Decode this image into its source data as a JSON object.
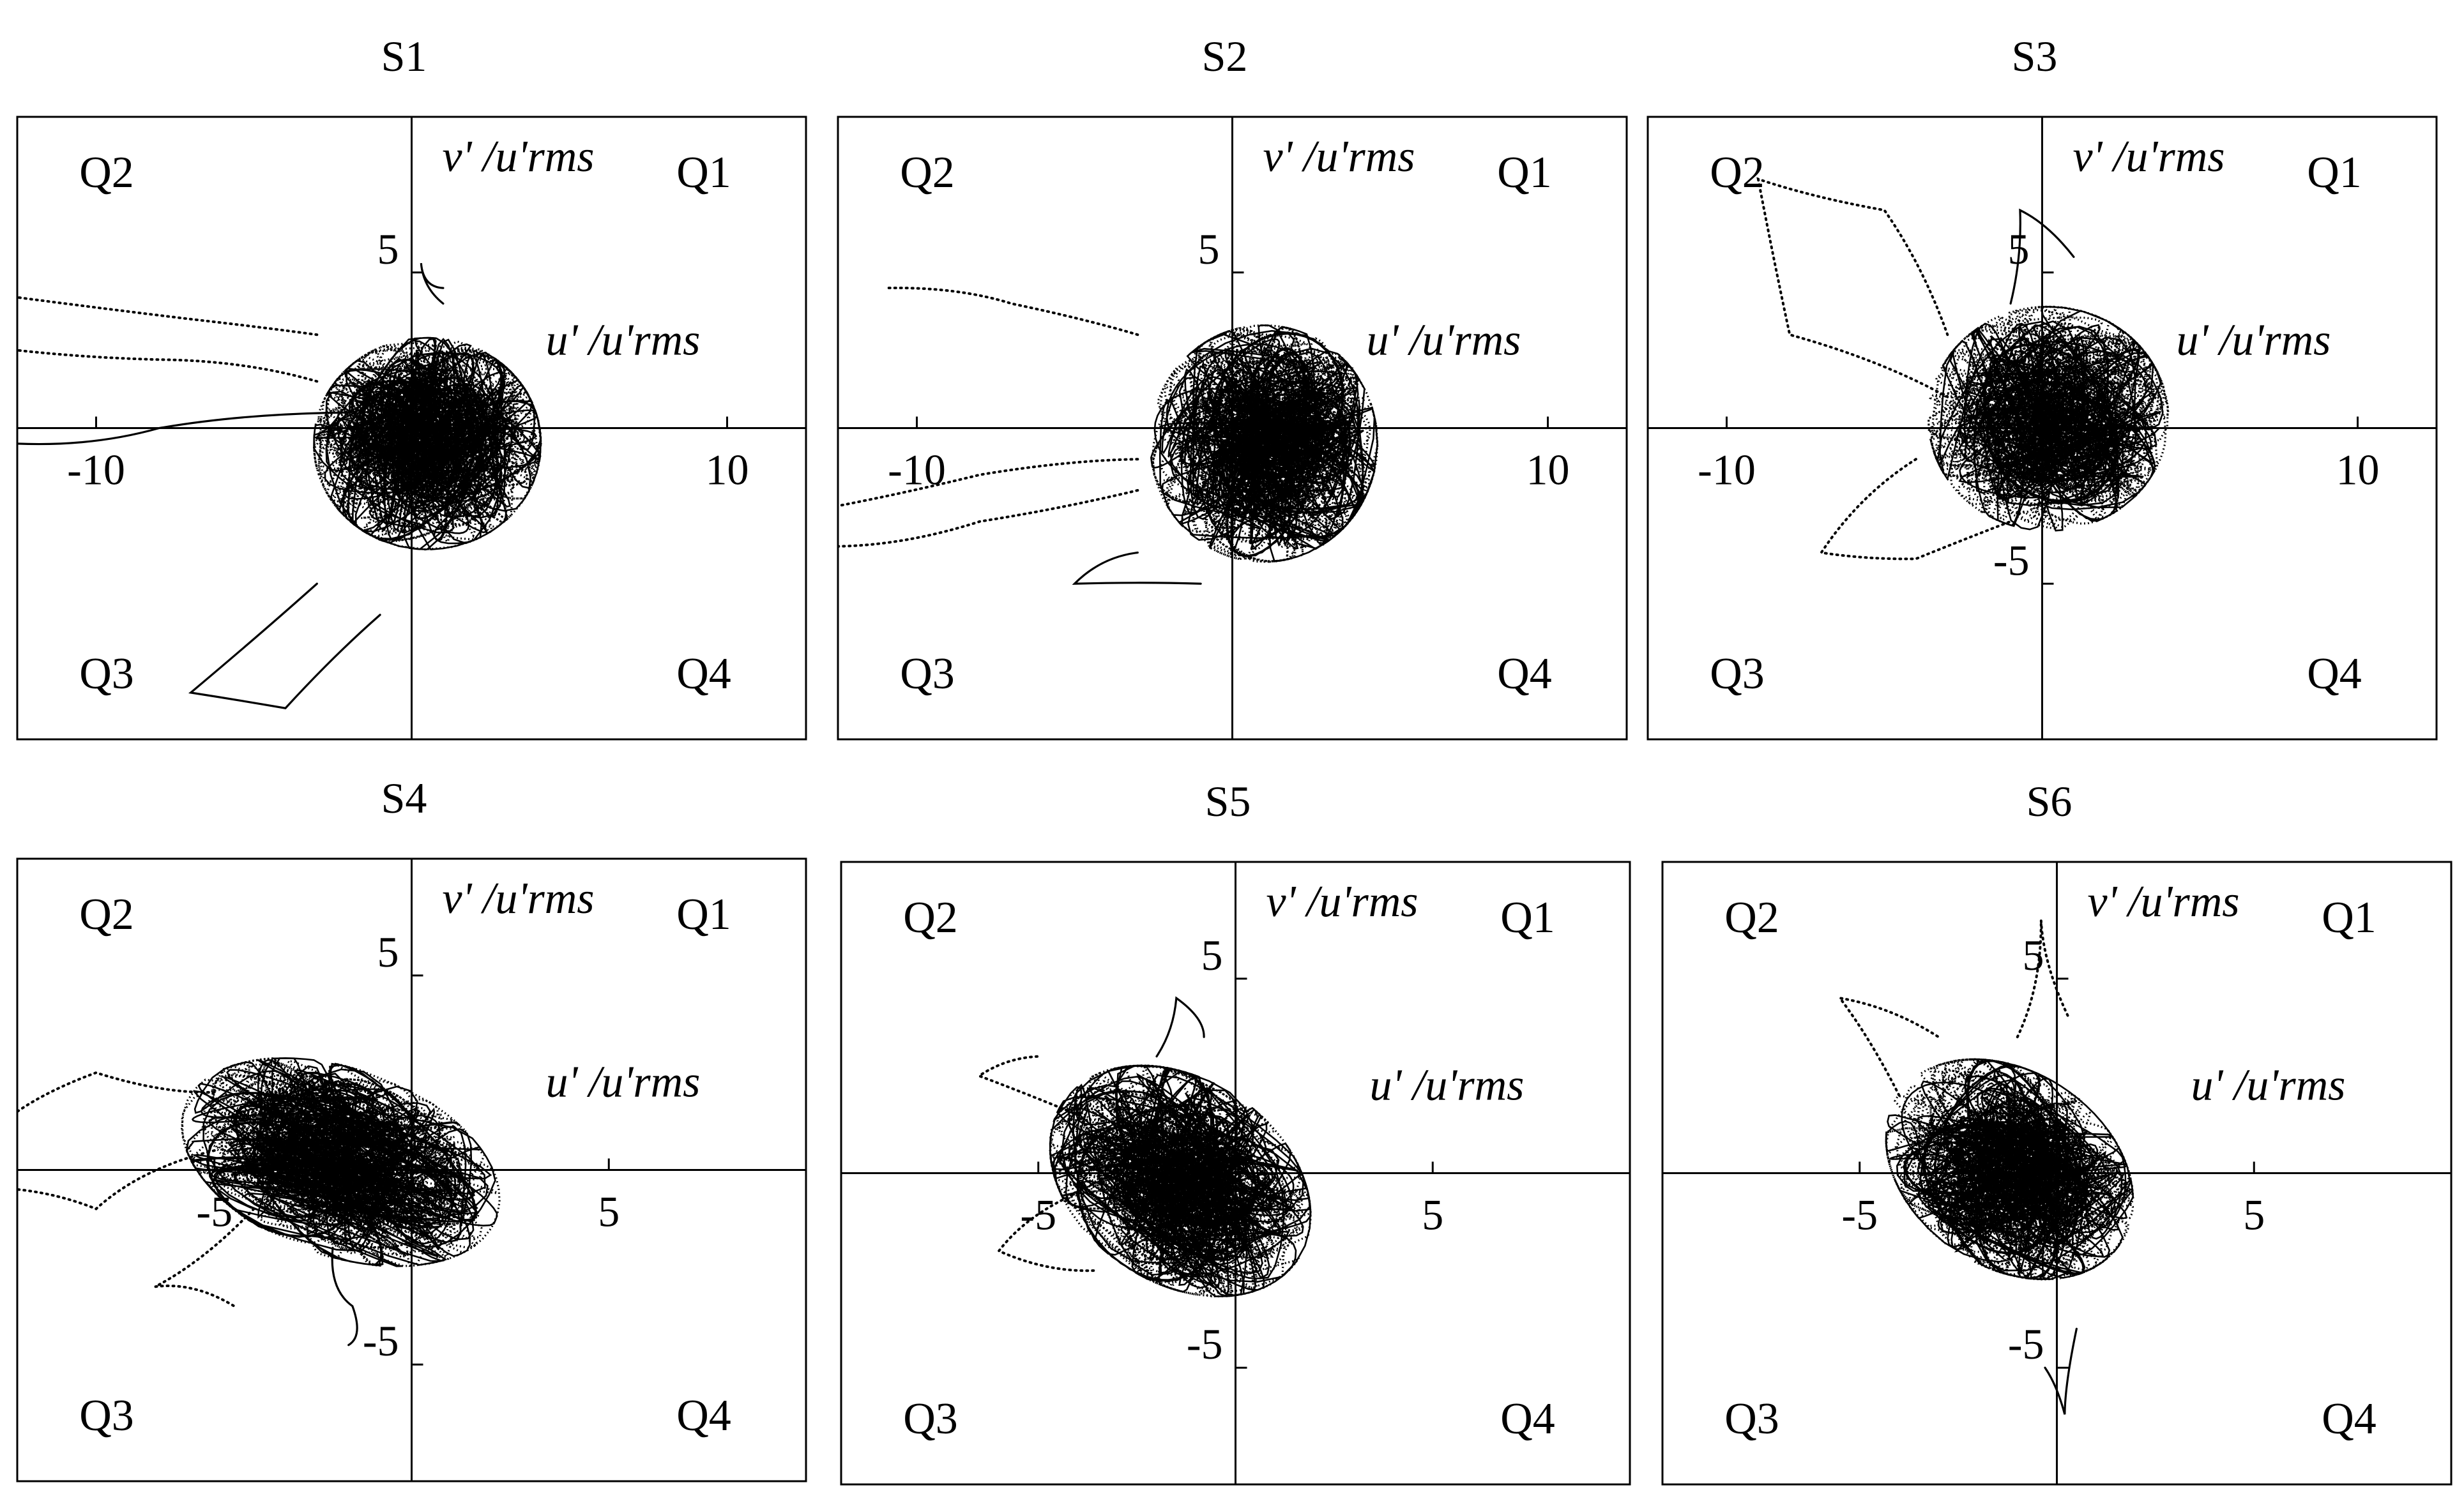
{
  "chart_data": [
    {
      "panel": "S1",
      "type": "scatter",
      "title": "S1",
      "xlabel": "u' /u'rms",
      "ylabel": "v' /u'rms",
      "quadrant_labels": [
        "Q1",
        "Q2",
        "Q3",
        "Q4"
      ],
      "xlim": [
        -12.5,
        12.5
      ],
      "ylim": [
        -10,
        10
      ],
      "x_ticks": [
        -10,
        10
      ],
      "x_tick_labels": [
        "-10",
        "10"
      ],
      "y_ticks": [
        5
      ],
      "y_tick_labels": [
        "5"
      ],
      "grid": false,
      "cloud": {
        "center": [
          0.5,
          -0.5
        ],
        "spread": [
          3.6,
          3.4
        ],
        "rotation_deg": 0
      },
      "excursions": [
        {
          "points": [
            [
              -3,
              3
            ],
            [
              -7,
              3.5
            ],
            [
              -12.5,
              4.2
            ]
          ],
          "style": "dotted"
        },
        {
          "points": [
            [
              -3,
              1.5
            ],
            [
              -8,
              2.2
            ],
            [
              -12.5,
              2.5
            ]
          ],
          "style": "dotted"
        },
        {
          "points": [
            [
              -2,
              0.5
            ],
            [
              -8,
              0
            ],
            [
              -12.5,
              -0.5
            ]
          ],
          "style": "solid"
        },
        {
          "points": [
            [
              -1,
              -6
            ],
            [
              -4,
              -9
            ],
            [
              -7,
              -8.5
            ],
            [
              -3,
              -5
            ]
          ],
          "style": "solid"
        },
        {
          "points": [
            [
              1,
              4
            ],
            [
              0.3,
              5.3
            ],
            [
              1,
              4.5
            ]
          ],
          "style": "solid"
        }
      ]
    },
    {
      "panel": "S2",
      "type": "scatter",
      "title": "S2",
      "xlabel": "u' /u'rms",
      "ylabel": "v' /u'rms",
      "quadrant_labels": [
        "Q1",
        "Q2",
        "Q3",
        "Q4"
      ],
      "xlim": [
        -12.5,
        12.5
      ],
      "ylim": [
        -10,
        10
      ],
      "x_ticks": [
        -10,
        10
      ],
      "x_tick_labels": [
        "-10",
        "10"
      ],
      "y_ticks": [
        5
      ],
      "y_tick_labels": [
        "5"
      ],
      "grid": false,
      "cloud": {
        "center": [
          1,
          -0.5
        ],
        "spread": [
          3.6,
          3.8
        ],
        "rotation_deg": 0
      },
      "excursions": [
        {
          "points": [
            [
              -3,
              3
            ],
            [
              -7,
              4
            ],
            [
              -11,
              4.5
            ]
          ],
          "style": "dotted"
        },
        {
          "points": [
            [
              -3,
              -2
            ],
            [
              -8,
              -3
            ],
            [
              -12.5,
              -3.8
            ]
          ],
          "style": "dotted"
        },
        {
          "points": [
            [
              -3,
              -1
            ],
            [
              -8,
              -1.5
            ],
            [
              -12.5,
              -2.5
            ]
          ],
          "style": "dotted"
        },
        {
          "points": [
            [
              -3,
              -4
            ],
            [
              -5,
              -5
            ],
            [
              -1,
              -5
            ]
          ],
          "style": "solid"
        }
      ]
    },
    {
      "panel": "S3",
      "type": "scatter",
      "title": "S3",
      "xlabel": "u' /u'rms",
      "ylabel": "v' /u'rms",
      "quadrant_labels": [
        "Q1",
        "Q2",
        "Q3",
        "Q4"
      ],
      "xlim": [
        -12.5,
        12.5
      ],
      "ylim": [
        -10,
        10
      ],
      "x_ticks": [
        -10,
        10
      ],
      "x_tick_labels": [
        "-10",
        "10"
      ],
      "y_ticks": [
        5,
        -5
      ],
      "y_tick_labels": [
        "5",
        "-5"
      ],
      "grid": false,
      "cloud": {
        "center": [
          0.2,
          0.3
        ],
        "spread": [
          3.8,
          3.6
        ],
        "rotation_deg": 0
      },
      "excursions": [
        {
          "points": [
            [
              -3,
              1
            ],
            [
              -8,
              3
            ],
            [
              -9,
              8
            ],
            [
              -5,
              7
            ],
            [
              -3,
              3
            ]
          ],
          "style": "dotted"
        },
        {
          "points": [
            [
              -4,
              -1
            ],
            [
              -7,
              -4
            ],
            [
              -4,
              -4.2
            ],
            [
              -1,
              -3
            ]
          ],
          "style": "dotted"
        },
        {
          "points": [
            [
              -1,
              4
            ],
            [
              -0.7,
              7
            ],
            [
              1,
              5.5
            ]
          ],
          "style": "solid"
        }
      ]
    },
    {
      "panel": "S4",
      "type": "scatter",
      "title": "S4",
      "xlabel": "u' /u'rms",
      "ylabel": "v' /u'rms",
      "quadrant_labels": [
        "Q1",
        "Q2",
        "Q3",
        "Q4"
      ],
      "xlim": [
        -10,
        10
      ],
      "ylim": [
        -8,
        8
      ],
      "x_ticks": [
        -5,
        5
      ],
      "x_tick_labels": [
        "-5",
        "5"
      ],
      "y_ticks": [
        5,
        -5
      ],
      "y_tick_labels": [
        "5",
        "-5"
      ],
      "grid": false,
      "cloud": {
        "center": [
          -1.8,
          0.2
        ],
        "spread": [
          4.2,
          2.4
        ],
        "rotation_deg": -20
      },
      "excursions": [
        {
          "points": [
            [
              -5,
              2
            ],
            [
              -8,
              2.5
            ],
            [
              -10,
              1.5
            ]
          ],
          "style": "dotted"
        },
        {
          "points": [
            [
              -5,
              0.5
            ],
            [
              -8,
              -1
            ],
            [
              -10,
              -0.5
            ]
          ],
          "style": "dotted"
        },
        {
          "points": [
            [
              -4,
              -1
            ],
            [
              -6.5,
              -3
            ],
            [
              -4.5,
              -3.5
            ]
          ],
          "style": "dotted"
        },
        {
          "points": [
            [
              -2,
              -2
            ],
            [
              -1.5,
              -3.5
            ],
            [
              -1.6,
              -4.5
            ]
          ],
          "style": "solid"
        }
      ]
    },
    {
      "panel": "S5",
      "type": "scatter",
      "title": "S5",
      "xlabel": "u' /u'rms",
      "ylabel": "v' /u'rms",
      "quadrant_labels": [
        "Q1",
        "Q2",
        "Q3",
        "Q4"
      ],
      "xlim": [
        -10,
        10
      ],
      "ylim": [
        -8,
        8
      ],
      "x_ticks": [
        -5,
        5
      ],
      "x_tick_labels": [
        "-5",
        "5"
      ],
      "y_ticks": [
        5,
        -5
      ],
      "y_tick_labels": [
        "5",
        "-5"
      ],
      "grid": false,
      "cloud": {
        "center": [
          -1.4,
          -0.2
        ],
        "spread": [
          3.6,
          2.6
        ],
        "rotation_deg": -35
      },
      "excursions": [
        {
          "points": [
            [
              -4,
              1.5
            ],
            [
              -6.5,
              2.5
            ],
            [
              -5,
              3
            ]
          ],
          "style": "dotted"
        },
        {
          "points": [
            [
              -4,
              -0.5
            ],
            [
              -6,
              -2
            ],
            [
              -3.5,
              -2.5
            ]
          ],
          "style": "dotted"
        },
        {
          "points": [
            [
              -2,
              3
            ],
            [
              -1.5,
              4.5
            ],
            [
              -0.8,
              3.5
            ]
          ],
          "style": "solid"
        }
      ]
    },
    {
      "panel": "S6",
      "type": "scatter",
      "title": "S6",
      "xlabel": "u' /u'rms",
      "ylabel": "v' /u'rms",
      "quadrant_labels": [
        "Q1",
        "Q2",
        "Q3",
        "Q4"
      ],
      "xlim": [
        -10,
        10
      ],
      "ylim": [
        -8,
        8
      ],
      "x_ticks": [
        -5,
        5
      ],
      "x_tick_labels": [
        "-5",
        "5"
      ],
      "y_ticks": [
        5,
        -5
      ],
      "y_tick_labels": [
        "5",
        "-5"
      ],
      "grid": false,
      "cloud": {
        "center": [
          -1.2,
          0.1
        ],
        "spread": [
          3.4,
          2.5
        ],
        "rotation_deg": -35
      },
      "excursions": [
        {
          "points": [
            [
              -4,
              2
            ],
            [
              -5.5,
              4.5
            ],
            [
              -3,
              3.5
            ]
          ],
          "style": "dotted"
        },
        {
          "points": [
            [
              -1,
              3.5
            ],
            [
              -0.4,
              6.5
            ],
            [
              0.3,
              4
            ]
          ],
          "style": "dotted"
        },
        {
          "points": [
            [
              0.5,
              -4
            ],
            [
              0.2,
              -6.2
            ],
            [
              -0.3,
              -5
            ]
          ],
          "style": "solid"
        }
      ]
    }
  ]
}
